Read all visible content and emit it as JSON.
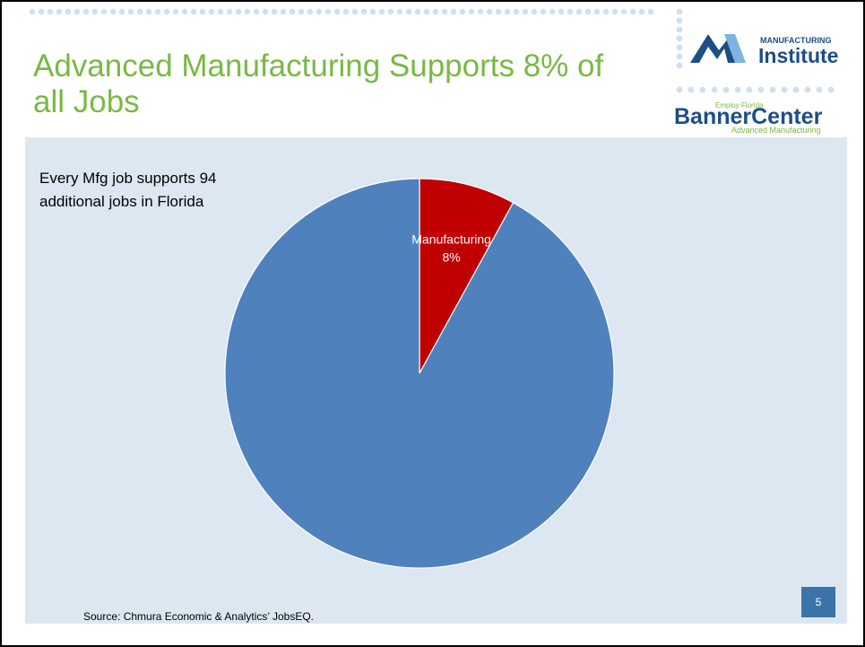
{
  "slide": {
    "title": "Advanced Manufacturing Supports 8% of all Jobs",
    "source": "Source: Chmura Economic & Analytics’ JobsEQ.",
    "page_number": "5",
    "accent_color": "#79b943"
  },
  "logos": {
    "manufacturing_institute": {
      "top_text": "MANUFACTURING",
      "main_text": "Institute"
    },
    "banner_center": {
      "small_text": "Employ Florida",
      "main_text": "BannerCenter",
      "sub_text": "Advanced Manufacturing"
    }
  },
  "chart_data": {
    "type": "pie",
    "annotation": [
      "Every Mfg job supports 94",
      "additional jobs in Florida"
    ],
    "slices": [
      {
        "name": "Manufacturing",
        "value": 8,
        "label": "Manufacturing",
        "value_label": "8%",
        "color": "#c00000"
      },
      {
        "name": "",
        "value": 92,
        "label": "",
        "value_label": "",
        "color": "#4f81bd"
      }
    ],
    "start_angle_deg": 0,
    "direction": "clockwise",
    "background_color": "#dde7f1"
  }
}
